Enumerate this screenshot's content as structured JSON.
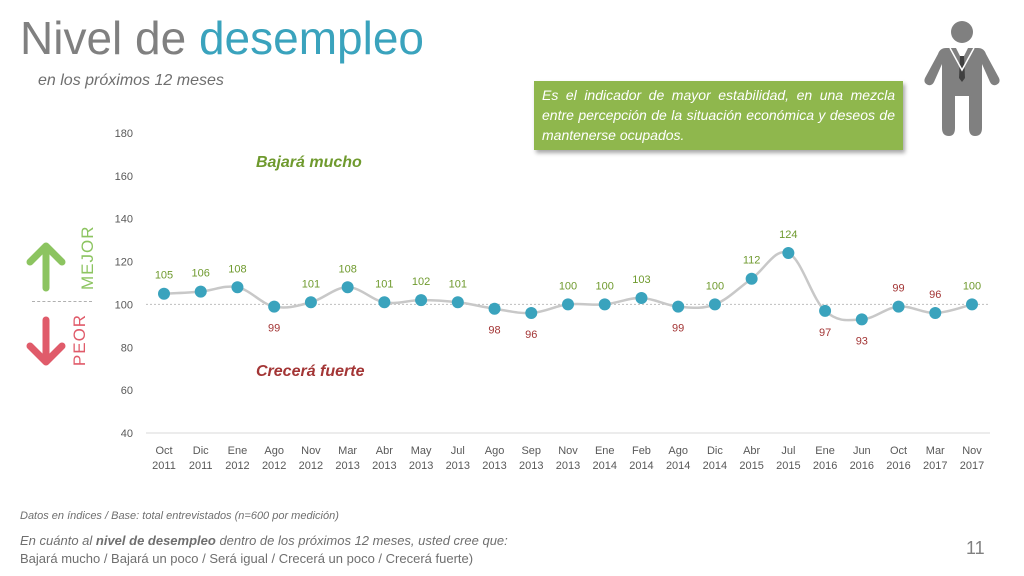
{
  "header": {
    "title_part1": "Nivel de ",
    "title_part2": "desempleo",
    "subtitle": "en los próximos 12 meses"
  },
  "callout": {
    "text": "Es el indicador de mayor estabilidad, en una mezcla entre percepción de la situación económica y deseos de mantenerse ocupados."
  },
  "side_labels": {
    "mejor": "MEJOR",
    "peor": "PEOR"
  },
  "colors": {
    "title_accent": "#3aa3bd",
    "marker": "#3aa3bd",
    "line": "#c8c8c8",
    "above_label": "#6f9a2e",
    "below_label": "#a33535",
    "callout_bg": "#8fb74d",
    "up_arrow": "#8cc460",
    "down_arrow": "#e05b6a"
  },
  "chart_data": {
    "type": "line",
    "categories": [
      [
        "Oct",
        "2011"
      ],
      [
        "Dic",
        "2011"
      ],
      [
        "Ene",
        "2012"
      ],
      [
        "Ago",
        "2012"
      ],
      [
        "Nov",
        "2012"
      ],
      [
        "Mar",
        "2013"
      ],
      [
        "Abr",
        "2013"
      ],
      [
        "May",
        "2013"
      ],
      [
        "Jul",
        "2013"
      ],
      [
        "Ago",
        "2013"
      ],
      [
        "Sep",
        "2013"
      ],
      [
        "Nov",
        "2013"
      ],
      [
        "Ene",
        "2014"
      ],
      [
        "Feb",
        "2014"
      ],
      [
        "Ago",
        "2014"
      ],
      [
        "Dic",
        "2014"
      ],
      [
        "Abr",
        "2015"
      ],
      [
        "Jul",
        "2015"
      ],
      [
        "Ene",
        "2016"
      ],
      [
        "Jun",
        "2016"
      ],
      [
        "Oct",
        "2016"
      ],
      [
        "Mar",
        "2017"
      ],
      [
        "Nov",
        "2017"
      ]
    ],
    "values": [
      105,
      106,
      108,
      99,
      101,
      108,
      101,
      102,
      101,
      98,
      96,
      100,
      100,
      103,
      99,
      100,
      112,
      124,
      97,
      93,
      99,
      96,
      100
    ],
    "label_position": [
      "above",
      "above",
      "above",
      "below",
      "above",
      "above",
      "above",
      "above",
      "above",
      "below",
      "below",
      "above",
      "above",
      "above",
      "below",
      "above",
      "above",
      "above",
      "below",
      "below",
      "above",
      "above",
      "above"
    ],
    "label_color": [
      "above",
      "above",
      "above",
      "below",
      "above",
      "above",
      "above",
      "above",
      "above",
      "below",
      "below",
      "above",
      "above",
      "above",
      "below",
      "above",
      "above",
      "above",
      "below",
      "below",
      "below",
      "below",
      "above"
    ],
    "ylim": [
      40,
      180
    ],
    "yticks": [
      40,
      60,
      80,
      100,
      120,
      140,
      160,
      180
    ],
    "reference_line": 100,
    "annotations": {
      "top": "Bajará mucho",
      "bottom": "Crecerá fuerte"
    },
    "grid": false
  },
  "footer": {
    "base_note": "Datos en índices / Base: total entrevistados (n=600 por medición)",
    "question_pre": "En cuánto al ",
    "question_bold": "nivel de desempleo",
    "question_post": " dentro de los próximos 12 meses, usted cree que:",
    "options": "Bajará mucho /  Bajará un poco / Será igual / Crecerá un poco / Crecerá fuerte)",
    "page_number": "11"
  }
}
